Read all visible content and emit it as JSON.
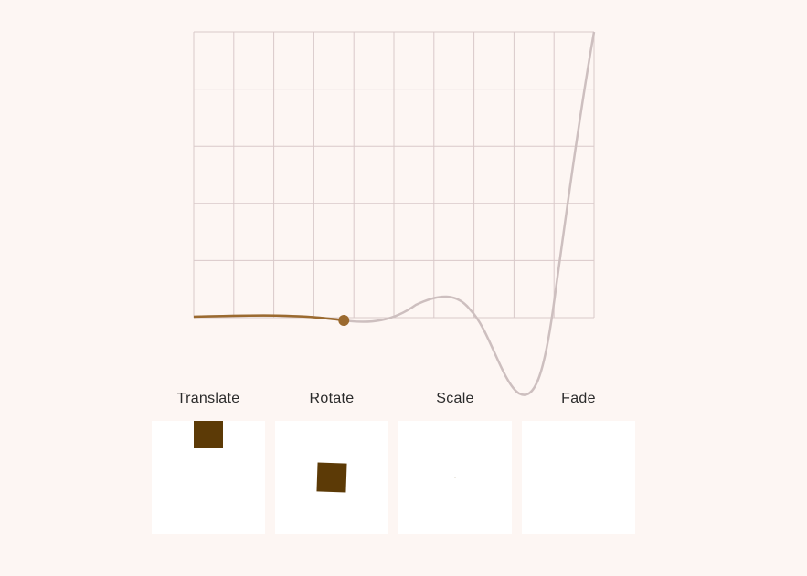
{
  "colors": {
    "background": "#fdf6f3",
    "panel": "#ffffff",
    "grid": "#d9c9c9",
    "curve_full": "#cdbfbf",
    "curve_progress": "#9b6a2f",
    "square": "#5c3a06"
  },
  "easing_curve": {
    "grid_columns": 10,
    "grid_rows": 5,
    "progress": 0.375
  },
  "panels": [
    {
      "label": "Translate"
    },
    {
      "label": "Rotate"
    },
    {
      "label": "Scale"
    },
    {
      "label": "Fade"
    }
  ]
}
